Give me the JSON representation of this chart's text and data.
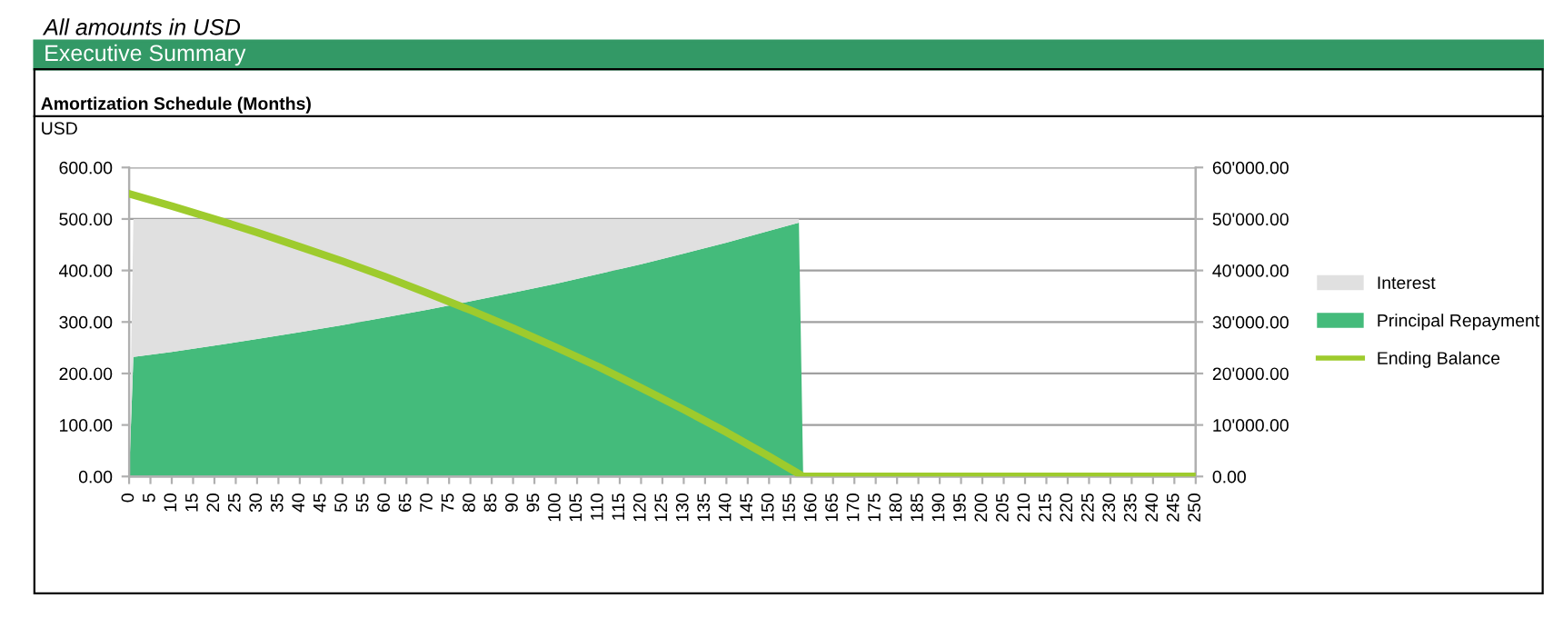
{
  "chart_data": {
    "type": "area",
    "title": "Executive Summary",
    "subtitle": "Amortization Schedule (Months)",
    "ylabel": "USD",
    "annotations": [
      "All amounts in USD"
    ],
    "stacked": true,
    "xlim": [
      0,
      250
    ],
    "xticks": [
      0,
      5,
      10,
      15,
      20,
      25,
      30,
      35,
      40,
      45,
      50,
      55,
      60,
      65,
      70,
      75,
      80,
      85,
      90,
      95,
      100,
      105,
      110,
      115,
      120,
      125,
      130,
      135,
      140,
      145,
      150,
      155,
      160,
      165,
      170,
      175,
      180,
      185,
      190,
      195,
      200,
      205,
      210,
      215,
      220,
      225,
      230,
      235,
      240,
      245,
      250
    ],
    "ylim": [
      0,
      600
    ],
    "yticks": [
      {
        "value": 0,
        "label": "0.00"
      },
      {
        "value": 100,
        "label": "100.00"
      },
      {
        "value": 200,
        "label": "200.00"
      },
      {
        "value": 300,
        "label": "300.00"
      },
      {
        "value": 400,
        "label": "400.00"
      },
      {
        "value": 500,
        "label": "500.00"
      },
      {
        "value": 600,
        "label": "600.00"
      }
    ],
    "y2lim": [
      0,
      60000
    ],
    "y2ticks": [
      {
        "value": 0,
        "label": "0.00"
      },
      {
        "value": 10000,
        "label": "10'000.00"
      },
      {
        "value": 20000,
        "label": "20'000.00"
      },
      {
        "value": 30000,
        "label": "30'000.00"
      },
      {
        "value": 40000,
        "label": "40'000.00"
      },
      {
        "value": 50000,
        "label": "50'000.00"
      },
      {
        "value": 60000,
        "label": "60'000.00"
      }
    ],
    "grid": "y",
    "legend": "right",
    "series": [
      {
        "name": "Principal Repayment",
        "color": "#44bb7b",
        "x": [
          0,
          1,
          10,
          20,
          30,
          40,
          50,
          60,
          70,
          80,
          90,
          100,
          110,
          120,
          130,
          140,
          150,
          157,
          158,
          250
        ],
        "values": [
          0,
          232,
          242,
          254,
          267,
          280,
          294,
          309,
          324,
          340,
          357,
          374,
          393,
          412,
          433,
          454,
          477,
          493,
          0,
          0
        ]
      },
      {
        "name": "Interest",
        "color": "#e0e0e0",
        "x": [
          0,
          1,
          10,
          20,
          30,
          40,
          50,
          60,
          70,
          80,
          90,
          100,
          110,
          120,
          130,
          140,
          150,
          157,
          158,
          250
        ],
        "values": [
          0,
          268,
          258,
          246,
          233,
          220,
          206,
          191,
          176,
          160,
          143,
          126,
          107,
          88,
          67,
          46,
          23,
          7,
          0,
          0
        ]
      },
      {
        "name": "Ending Balance",
        "color": "#9ecb2d",
        "type": "line",
        "axis": "y2",
        "x": [
          0,
          10,
          20,
          30,
          40,
          50,
          60,
          70,
          80,
          90,
          100,
          110,
          120,
          130,
          140,
          150,
          157,
          158,
          250
        ],
        "values": [
          54900,
          52500,
          50000,
          47400,
          44600,
          41800,
          38800,
          35600,
          32300,
          28800,
          25100,
          21300,
          17200,
          13000,
          8600,
          3900,
          500,
          0,
          0
        ]
      }
    ]
  }
}
